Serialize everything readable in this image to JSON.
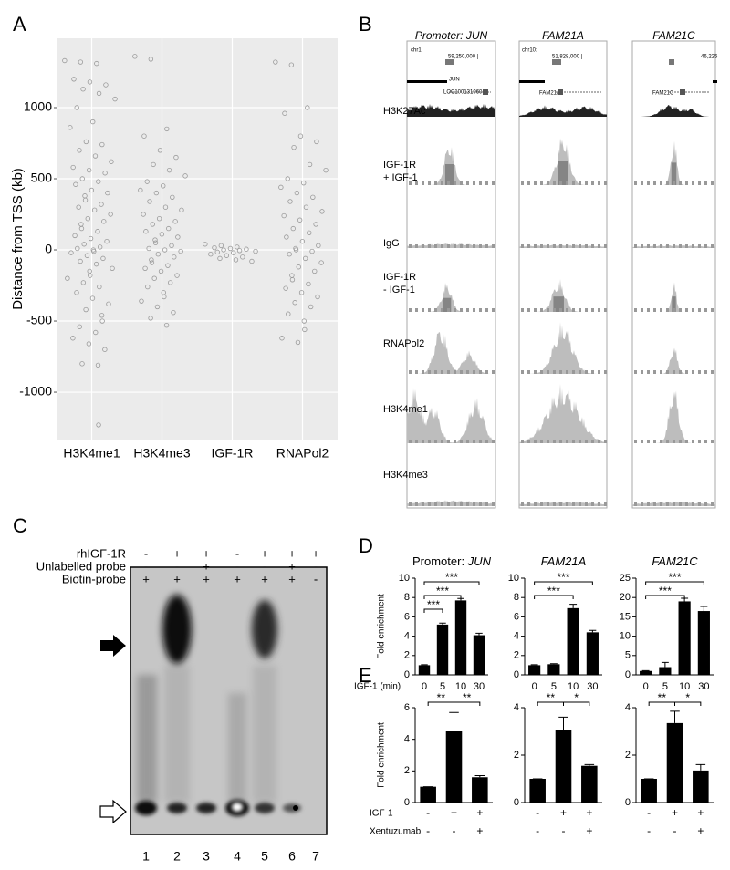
{
  "panel_labels": [
    "A",
    "B",
    "C",
    "D",
    "E"
  ],
  "chart_data": [
    {
      "type": "strip",
      "ylabel": "Distance from TSS (kb)",
      "categories": [
        "H3K4me1",
        "H3K4me3",
        "IGF-1R",
        "RNAPol2"
      ],
      "values": [
        [
          1330,
          1320,
          1310,
          1200,
          1180,
          1160,
          1130,
          1100,
          1060,
          1000,
          900,
          860,
          760,
          740,
          700,
          660,
          620,
          580,
          560,
          540,
          500,
          480,
          460,
          420,
          400,
          380,
          350,
          320,
          300,
          280,
          250,
          220,
          200,
          180,
          150,
          130,
          100,
          80,
          60,
          40,
          20,
          10,
          0,
          -10,
          -20,
          -40,
          -60,
          -80,
          -100,
          -130,
          -150,
          -180,
          -200,
          -230,
          -260,
          -300,
          -340,
          -380,
          -420,
          -460,
          -500,
          -540,
          -580,
          -620,
          -660,
          -700,
          -800,
          -810,
          -1230
        ],
        [
          1360,
          1340,
          850,
          800,
          700,
          650,
          600,
          560,
          520,
          480,
          450,
          420,
          400,
          370,
          340,
          300,
          280,
          250,
          220,
          200,
          180,
          150,
          130,
          110,
          90,
          70,
          50,
          30,
          10,
          0,
          -10,
          -30,
          -50,
          -70,
          -90,
          -110,
          -130,
          -150,
          -180,
          -200,
          -230,
          -260,
          -300,
          -330,
          -360,
          -400,
          -440,
          -480,
          -530
        ],
        [
          40,
          30,
          20,
          15,
          10,
          5,
          0,
          -5,
          -10,
          -15,
          -20,
          -30,
          -40,
          -50,
          -60,
          -70,
          -80
        ],
        [
          1320,
          1300,
          1000,
          960,
          800,
          760,
          720,
          600,
          560,
          500,
          470,
          440,
          400,
          370,
          340,
          300,
          270,
          240,
          210,
          180,
          150,
          120,
          90,
          60,
          30,
          10,
          0,
          -10,
          -30,
          -60,
          -90,
          -120,
          -150,
          -180,
          -210,
          -240,
          -270,
          -300,
          -330,
          -370,
          -400,
          -450,
          -500,
          -560,
          -620,
          -650
        ]
      ],
      "color": "#9a9a9a",
      "ylim": [
        -1333,
        1487
      ],
      "yticks": [
        -1000,
        -500,
        0,
        500,
        1000
      ],
      "grid": true
    },
    {
      "type": "bar",
      "title": "Promoter:",
      "title_gene": "JUN",
      "ylabel": "Fold enrichment",
      "xlabel": "IGF-1 (min)",
      "categories": [
        "0",
        "5",
        "10",
        "30"
      ],
      "values": [
        1,
        5.2,
        7.7,
        4.1
      ],
      "errors": [
        0.05,
        0.15,
        0.2,
        0.2
      ],
      "color": "#000000",
      "ylim": [
        0,
        10
      ],
      "yticks": [
        0,
        2,
        4,
        6,
        8,
        10
      ],
      "annotations": [
        {
          "between": [
            0,
            1
          ],
          "label": "***"
        },
        {
          "between": [
            0,
            2
          ],
          "label": "***"
        },
        {
          "between": [
            0,
            3
          ],
          "label": "***"
        }
      ]
    },
    {
      "type": "bar",
      "title_gene": "FAM21A",
      "categories": [
        "0",
        "5",
        "10",
        "30"
      ],
      "values": [
        1,
        1.1,
        6.9,
        4.4
      ],
      "errors": [
        0.05,
        0.05,
        0.4,
        0.2
      ],
      "color": "#000000",
      "ylim": [
        0,
        10
      ],
      "yticks": [
        0,
        2,
        4,
        6,
        8,
        10
      ],
      "annotations": [
        {
          "between": [
            0,
            2
          ],
          "label": "***"
        },
        {
          "between": [
            0,
            3
          ],
          "label": "***"
        }
      ]
    },
    {
      "type": "bar",
      "title_gene": "FAM21C",
      "categories": [
        "0",
        "5",
        "10",
        "30"
      ],
      "values": [
        1,
        2,
        19,
        16.5
      ],
      "errors": [
        0.1,
        1.2,
        0.8,
        1.2
      ],
      "color": "#000000",
      "ylim": [
        0,
        25
      ],
      "yticks": [
        0,
        5,
        10,
        15,
        20,
        25
      ],
      "annotations": [
        {
          "between": [
            0,
            2
          ],
          "label": "***"
        },
        {
          "between": [
            0,
            3
          ],
          "label": "***"
        }
      ]
    },
    {
      "type": "bar",
      "ylabel": "Fold enrichment",
      "category_rows": [
        {
          "name": "IGF-1",
          "labels": [
            "-",
            "+",
            "+"
          ]
        },
        {
          "name": "Xentuzumab",
          "labels": [
            "-",
            "-",
            "+"
          ]
        }
      ],
      "values": [
        1,
        4.5,
        1.6
      ],
      "errors": [
        0,
        1.2,
        0.1
      ],
      "color": "#000000",
      "ylim": [
        0,
        6
      ],
      "yticks": [
        0,
        2,
        4,
        6
      ],
      "annotations": [
        {
          "between": [
            0,
            1
          ],
          "label": "**"
        },
        {
          "between": [
            1,
            2
          ],
          "label": "**"
        }
      ]
    },
    {
      "type": "bar",
      "category_rows": [
        {
          "labels": [
            "-",
            "+",
            "+"
          ]
        },
        {
          "labels": [
            "-",
            "-",
            "+"
          ]
        }
      ],
      "values": [
        1,
        3.05,
        1.55
      ],
      "errors": [
        0,
        0.55,
        0.05
      ],
      "color": "#000000",
      "ylim": [
        0,
        4
      ],
      "yticks": [
        0,
        2,
        4
      ],
      "annotations": [
        {
          "between": [
            0,
            1
          ],
          "label": "**"
        },
        {
          "between": [
            1,
            2
          ],
          "label": "*"
        }
      ]
    },
    {
      "type": "bar",
      "category_rows": [
        {
          "labels": [
            "-",
            "+",
            "+"
          ]
        },
        {
          "labels": [
            "-",
            "-",
            "+"
          ]
        }
      ],
      "values": [
        1,
        3.35,
        1.35
      ],
      "errors": [
        0,
        0.5,
        0.25
      ],
      "color": "#000000",
      "ylim": [
        0,
        4
      ],
      "yticks": [
        0,
        2,
        4
      ],
      "annotations": [
        {
          "between": [
            0,
            1
          ],
          "label": "**"
        },
        {
          "between": [
            1,
            2
          ],
          "label": "*"
        }
      ]
    }
  ],
  "panel_b": {
    "columns": [
      {
        "title": "Promoter: JUN",
        "header_texts": [
          "chr1:",
          "59,250,000 |",
          "JUN",
          "LOC100131060"
        ]
      },
      {
        "title": "FAM21A",
        "header_texts": [
          "chr10:",
          "51,828,000 |",
          "FAM21A"
        ]
      },
      {
        "title": "FAM21C",
        "header_texts": [
          "46,225",
          "FAM21C"
        ]
      }
    ],
    "tracks": [
      [
        "H3K27Ac"
      ],
      [
        "IGF-1R",
        "+ IGF-1"
      ],
      [
        "IgG"
      ],
      [
        "IGF-1R",
        "- IGF-1"
      ],
      [
        "RNAPol2"
      ],
      [
        "H3K4me1"
      ],
      [
        "H3K4me3"
      ]
    ]
  },
  "panel_c": {
    "rows": [
      {
        "name": "rhIGF-1R",
        "signs": [
          "-",
          "+",
          "+",
          "-",
          "+",
          "+",
          "+"
        ]
      },
      {
        "name": "Unlabelled probe",
        "signs": [
          "-",
          "-",
          "+",
          "-",
          "-",
          "+",
          "-"
        ]
      },
      {
        "name": "Biotin-probe",
        "signs": [
          "+",
          "+",
          "+",
          "+",
          "+",
          "+",
          "-"
        ]
      }
    ],
    "lanes": [
      "1",
      "2",
      "3",
      "4",
      "5",
      "6",
      "7"
    ]
  }
}
